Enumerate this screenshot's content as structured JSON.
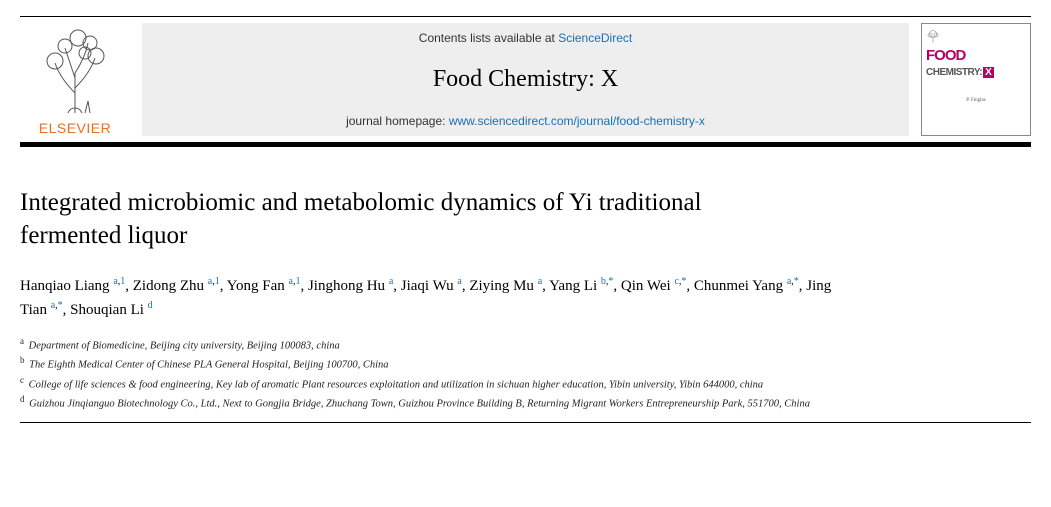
{
  "header": {
    "contents_prefix": "Contents lists available at ",
    "contents_link": "ScienceDirect",
    "journal_name": "Food Chemistry: X",
    "homepage_prefix": "journal homepage: ",
    "homepage_link": "www.sciencedirect.com/journal/food-chemistry-x",
    "publisher": "ELSEVIER",
    "cover": {
      "food": "FOOD",
      "chem": "CHEMISTRY:",
      "x": "X",
      "editor": "P. Finglas"
    }
  },
  "title": "Integrated microbiomic and metabolomic dynamics of Yi traditional fermented liquor",
  "authors": [
    {
      "name": "Hanqiao Liang",
      "marks": "a,1"
    },
    {
      "name": "Zidong Zhu",
      "marks": "a,1"
    },
    {
      "name": "Yong Fan",
      "marks": "a,1"
    },
    {
      "name": "Jinghong Hu",
      "marks": "a"
    },
    {
      "name": "Jiaqi Wu",
      "marks": "a"
    },
    {
      "name": "Ziying Mu",
      "marks": "a"
    },
    {
      "name": "Yang Li",
      "marks": "b,*"
    },
    {
      "name": "Qin Wei",
      "marks": "c,*"
    },
    {
      "name": "Chunmei Yang",
      "marks": "a,*"
    },
    {
      "name": "Jing Tian",
      "marks": "a,*"
    },
    {
      "name": "Shouqian Li",
      "marks": "d"
    }
  ],
  "affiliations": [
    {
      "label": "a",
      "text": "Department of Biomedicine, Beijing city university, Beijing 100083, china"
    },
    {
      "label": "b",
      "text": "The Eighth Medical Center of Chinese PLA General Hospital, Beijing 100700, China"
    },
    {
      "label": "c",
      "text": "College of life sciences & food engineering, Key lab of aromatic Plant resources exploitation and utilization in sichuan higher education, Yibin university, Yibin 644000, china"
    },
    {
      "label": "d",
      "text": "Guizhou Jinqianguo Biotechnology Co., Ltd., Next to Gongjia Bridge, Zhuchang Town, Guizhou Province Building B, Returning Migrant Workers Entrepreneurship Park, 551700, China"
    }
  ],
  "colors": {
    "link": "#1a6fb3",
    "accent": "#e9711c",
    "brand": "#b90066"
  }
}
